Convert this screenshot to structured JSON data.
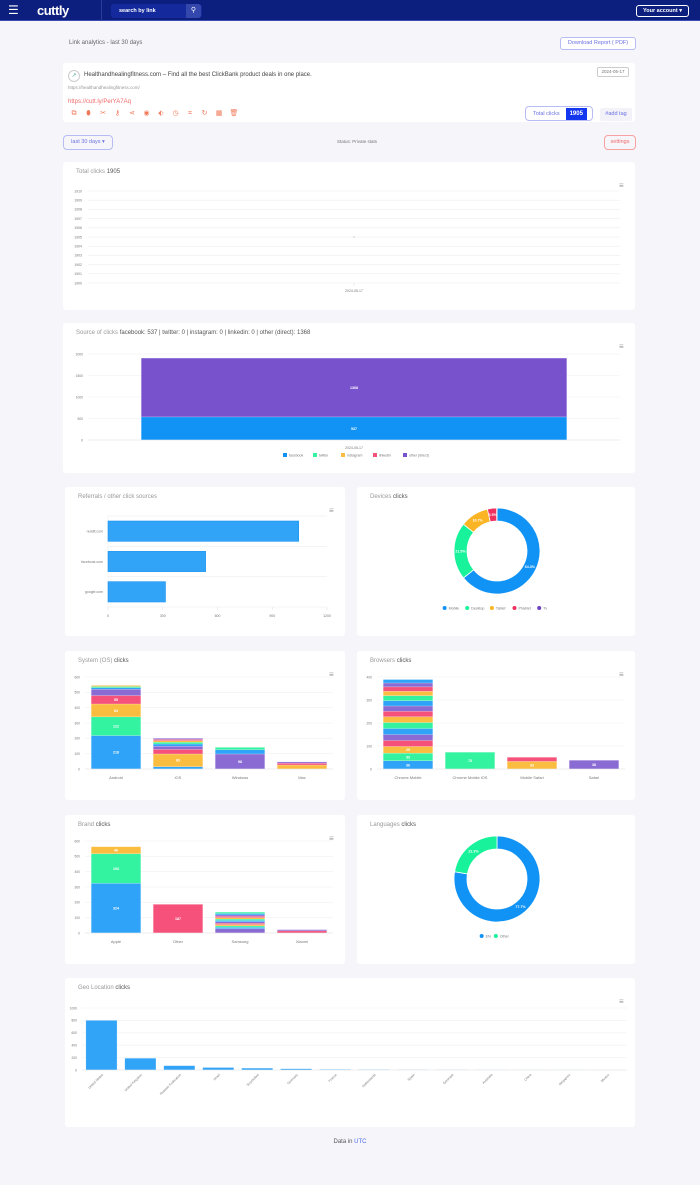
{
  "header": {
    "logo": "cuttly",
    "search_placeholder": "search by link",
    "account_label": "Your account ▾"
  },
  "page": {
    "title": "Link analytics - last 30 days",
    "download_label": "Download Report ( PDF)"
  },
  "link": {
    "title": "Healthandhealingfitness.com – Find all the best ClickBank product deals in one place.",
    "url": "https://healthandhealingfitness.com/",
    "short_url": "https://cutt.ly/PerYA7Aq",
    "date": "2024-05-17",
    "total_clicks_label": "Total clicks",
    "total_clicks": "1905",
    "add_tag_label": "#add tag",
    "icons": [
      "copy-icon",
      "pin-icon",
      "cut-icon",
      "key-icon",
      "share-icon",
      "target-icon",
      "tag-icon",
      "clock-icon",
      "scan-icon",
      "refresh-icon",
      "qr-code-icon",
      "trash-icon"
    ]
  },
  "controls": {
    "range_label": "last 30 days ▾",
    "status": "Status: Private stats",
    "settings_label": "settings"
  },
  "colors": {
    "palette": [
      "#2ea3f7",
      "#33f2a0",
      "#fbbd40",
      "#f5517a",
      "#8a6ad3"
    ],
    "source_blue": "#1193f5",
    "source_purple": "#7851cd",
    "donut": [
      "#1193f5",
      "#18f29a",
      "#fbb423",
      "#f0305e",
      "#6f42c1"
    ]
  },
  "chart_data": [
    {
      "id": "total",
      "type": "line",
      "title_prefix": "Total clicks",
      "title_value": "1905",
      "categories": [
        "2024-05-17"
      ],
      "values": [
        1905
      ],
      "ylim": [
        1900,
        1910
      ],
      "yticks": [
        "1900",
        "1901",
        "1902",
        "1903",
        "1904",
        "1905",
        "1906",
        "1907",
        "1908",
        "1909",
        "1910"
      ],
      "grid": true
    },
    {
      "id": "source",
      "type": "bar",
      "stacked": true,
      "title_prefix": "Source of clicks",
      "title_value": "facebook: 537 | twitter: 0 | instagram: 0 | linkedin: 0 | other (direct): 1368",
      "categories": [
        "2024-05-17"
      ],
      "series": [
        {
          "name": "facebook",
          "values": [
            537
          ]
        },
        {
          "name": "twitter",
          "values": [
            0
          ]
        },
        {
          "name": "instagram",
          "values": [
            0
          ]
        },
        {
          "name": "linkedin",
          "values": [
            0
          ]
        },
        {
          "name": "other (direct)",
          "values": [
            1368
          ]
        }
      ],
      "ylim": [
        0,
        2000
      ],
      "yticks": [
        "0",
        "500",
        "1000",
        "1500",
        "2000"
      ],
      "legend": "bottom"
    },
    {
      "id": "referrals",
      "type": "bar",
      "orientation": "horizontal",
      "title_prefix": "Referrals / other click sources",
      "title_value": "",
      "categories": [
        "reddit.com",
        "facebook.com",
        "google.com"
      ],
      "values": [
        1045,
        535,
        315
      ],
      "xlim": [
        0,
        1200
      ],
      "xticks": [
        "0",
        "300",
        "600",
        "900",
        "1200"
      ]
    },
    {
      "id": "devices",
      "type": "pie",
      "donut": true,
      "title_prefix": "Devices",
      "title_value": "clicks",
      "labels": [
        "Mobile",
        "Desktop",
        "Tablet",
        "Phablet",
        "Tv"
      ],
      "values": [
        64.3,
        21.5,
        10.7,
        3.5,
        0.1
      ],
      "data_labels": [
        "64.3%",
        "21.5%",
        "10.7%",
        "3.5%",
        ""
      ],
      "legend": "bottom"
    },
    {
      "id": "os",
      "type": "bar",
      "stacked": true,
      "title_prefix": "System (OS)",
      "title_value": "clicks",
      "categories": [
        "Android",
        "iOS",
        "Windows",
        "Mac"
      ],
      "stacks": [
        [
          218,
          122,
          84,
          55,
          41,
          10,
          8,
          7
        ],
        [
          15,
          0,
          83,
          30,
          21,
          14,
          12,
          10,
          8,
          7
        ],
        [
          0,
          0,
          0,
          0,
          98,
          28,
          15
        ],
        [
          0,
          0,
          26,
          12,
          8
        ]
      ],
      "ylim": [
        0,
        600
      ],
      "yticks": [
        "0",
        "100",
        "200",
        "300",
        "400",
        "500",
        "600"
      ]
    },
    {
      "id": "browsers",
      "type": "bar",
      "stacked": true,
      "title_prefix": "Browsers",
      "title_value": "clicks",
      "categories": [
        "Chrome Mobile",
        "Chrome Mobile iOS",
        "Mobile Safari",
        "Safari"
      ],
      "stacks": [
        [
          36,
          33,
          29,
          26,
          26,
          26,
          26,
          25,
          24,
          23,
          23,
          22,
          19,
          19,
          17,
          15
        ],
        [
          0,
          73
        ],
        [
          0,
          0,
          33,
          18
        ],
        [
          0,
          0,
          0,
          0,
          38
        ]
      ],
      "ylim": [
        0,
        400
      ],
      "yticks": [
        "0",
        "100",
        "200",
        "300",
        "400"
      ]
    },
    {
      "id": "brand",
      "type": "bar",
      "stacked": true,
      "title_prefix": "Brand",
      "title_value": "clicks",
      "categories": [
        "Apple",
        "Other",
        "Samsung",
        "Xiaomi"
      ],
      "stacks": [
        [
          324,
          193,
          46
        ],
        [
          0,
          0,
          0,
          187
        ],
        [
          0,
          0,
          0,
          0,
          28,
          9,
          9,
          9,
          9,
          9,
          9,
          9,
          9,
          9,
          9,
          9,
          9
        ],
        [
          0,
          0,
          0,
          14,
          8
        ]
      ],
      "ylim": [
        0,
        600
      ],
      "yticks": [
        "0",
        "100",
        "200",
        "300",
        "400",
        "500",
        "600"
      ]
    },
    {
      "id": "languages",
      "type": "pie",
      "donut": true,
      "title_prefix": "Languages",
      "title_value": "clicks",
      "labels": [
        "EN",
        "Other"
      ],
      "values": [
        77.7,
        22.3
      ],
      "data_labels": [
        "77.7%",
        "22.3%"
      ],
      "legend": "bottom"
    },
    {
      "id": "geo",
      "type": "bar",
      "title_prefix": "Geo Location",
      "title_value": "clicks",
      "categories": [
        "United States",
        "United Kingdom",
        "Russian Federation",
        "Israel",
        "Seychelles",
        "Germany",
        "France",
        "Netherlands",
        "Spain",
        "Denmark",
        "Australia",
        "China",
        "Singapore",
        "Mexico"
      ],
      "values": [
        800,
        190,
        70,
        40,
        30,
        20,
        10,
        8,
        5,
        4,
        3,
        2,
        2,
        1
      ],
      "ylim": [
        0,
        1000
      ],
      "yticks": [
        "0",
        "200",
        "400",
        "600",
        "800",
        "1000"
      ]
    }
  ],
  "footer": {
    "prefix": "Data in",
    "utc": "UTC"
  }
}
